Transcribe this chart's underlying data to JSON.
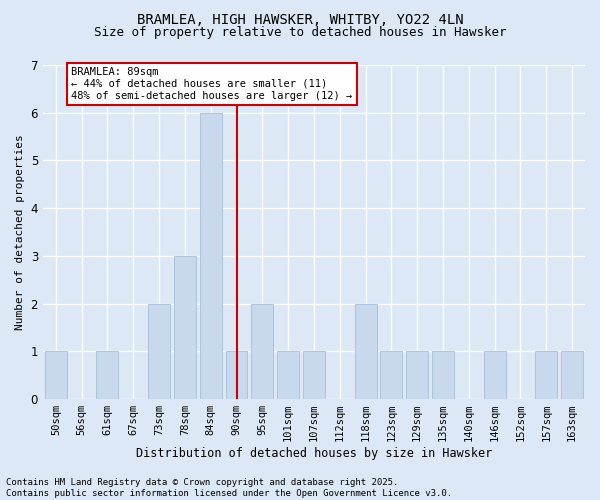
{
  "title1": "BRAMLEA, HIGH HAWSKER, WHITBY, YO22 4LN",
  "title2": "Size of property relative to detached houses in Hawsker",
  "xlabel": "Distribution of detached houses by size in Hawsker",
  "ylabel": "Number of detached properties",
  "categories": [
    "50sqm",
    "56sqm",
    "61sqm",
    "67sqm",
    "73sqm",
    "78sqm",
    "84sqm",
    "90sqm",
    "95sqm",
    "101sqm",
    "107sqm",
    "112sqm",
    "118sqm",
    "123sqm",
    "129sqm",
    "135sqm",
    "140sqm",
    "146sqm",
    "152sqm",
    "157sqm",
    "163sqm"
  ],
  "values": [
    1,
    0,
    1,
    0,
    2,
    3,
    6,
    1,
    2,
    1,
    1,
    0,
    2,
    1,
    1,
    1,
    0,
    1,
    0,
    1,
    1
  ],
  "bar_color": "#c8d9ed",
  "bar_edge_color": "#a8bfd8",
  "vline_index": 7,
  "vline_color": "#cc0000",
  "annotation_text": "BRAMLEA: 89sqm\n← 44% of detached houses are smaller (11)\n48% of semi-detached houses are larger (12) →",
  "annotation_box_color": "#ffffff",
  "annotation_box_edge": "#cc0000",
  "ylim": [
    0,
    7
  ],
  "yticks": [
    0,
    1,
    2,
    3,
    4,
    5,
    6,
    7
  ],
  "background_color": "#dce8f5",
  "grid_color": "#ffffff",
  "footer_text": "Contains HM Land Registry data © Crown copyright and database right 2025.\nContains public sector information licensed under the Open Government Licence v3.0.",
  "title1_fontsize": 10,
  "title2_fontsize": 9,
  "xlabel_fontsize": 8.5,
  "ylabel_fontsize": 8,
  "tick_fontsize": 7.5,
  "annotation_fontsize": 7.5,
  "footer_fontsize": 6.5
}
